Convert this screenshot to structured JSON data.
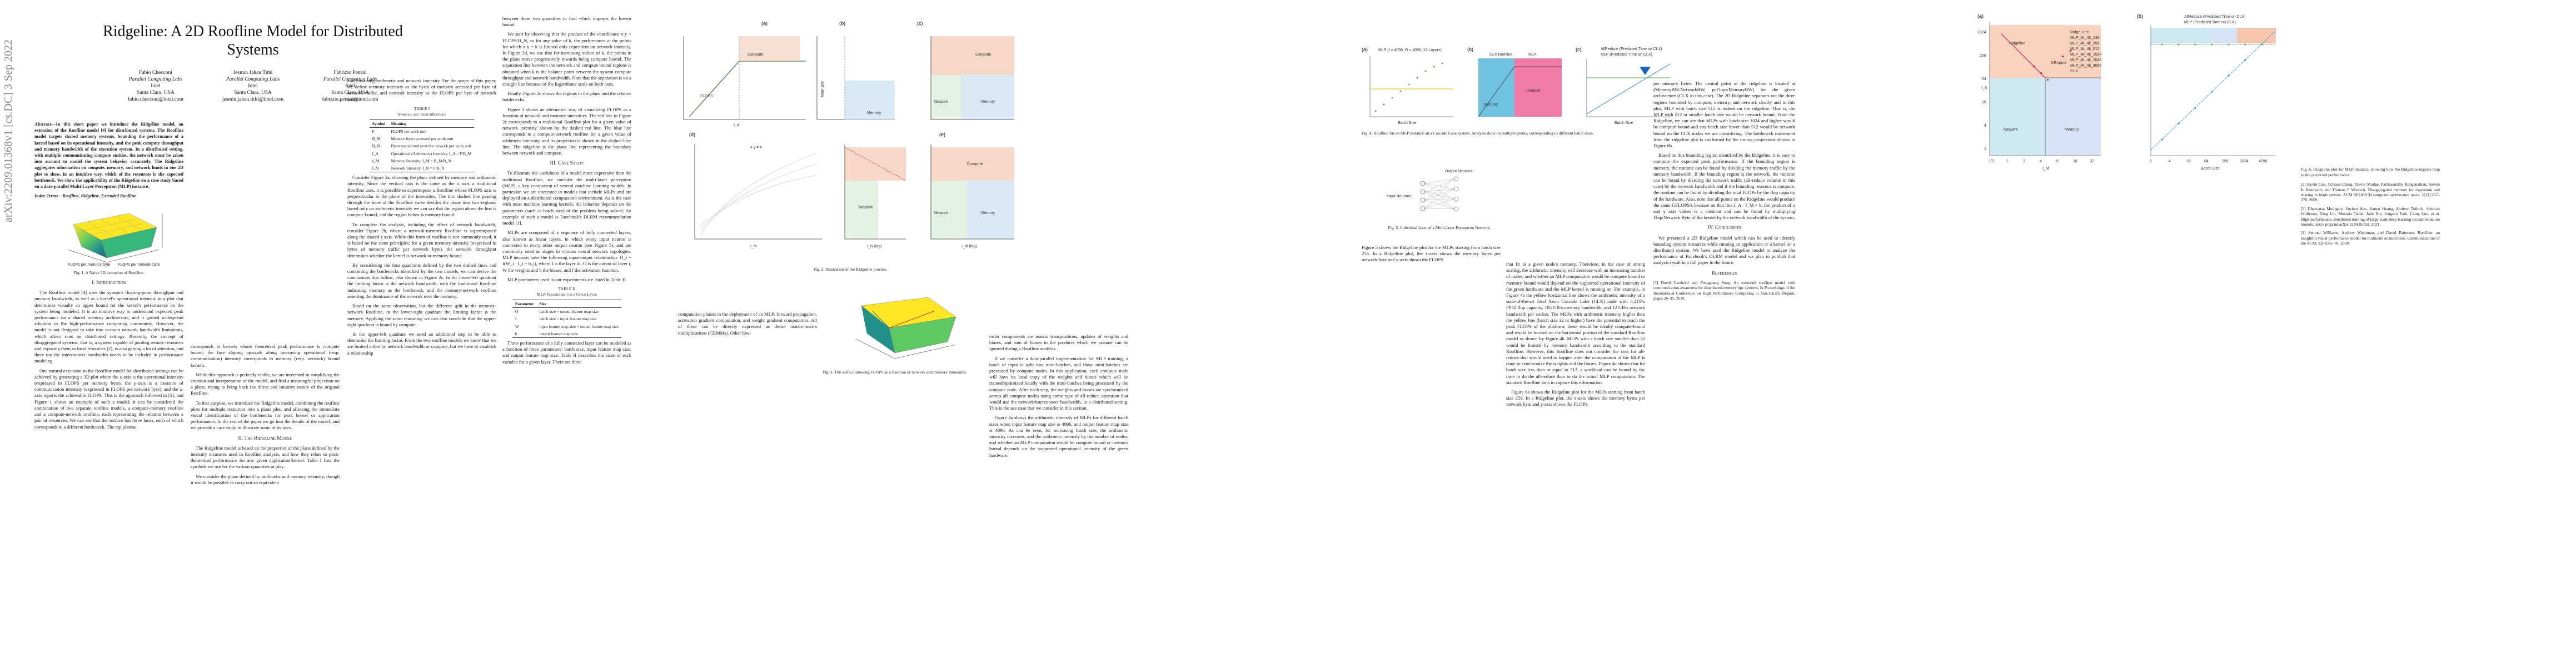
{
  "arxiv_id": "arXiv:2209.01368v1  [cs.DC]  3 Sep 2022",
  "title": "Ridgeline: A 2D Roofline Model for Distributed Systems",
  "authors": [
    {
      "name": "Fabio Checconi",
      "org": "Parallel Computing Labs",
      "company": "Intel",
      "city": "Santa Clara, USA",
      "email": "fabio.checconi@intel.com"
    },
    {
      "name": "Jesmin Jahan Tithi",
      "org": "Parallel Computing Labs",
      "company": "Intel",
      "city": "Santa Clara, USA",
      "email": "jesmin.jahan.tithi@intel.com"
    },
    {
      "name": "Fabrizio Petrini",
      "org": "Parallel Computing Labs",
      "company": "Intel",
      "city": "Santa Clara, USA",
      "email": "fabrizio.petrini@intel.com"
    }
  ],
  "abstract": "Abstract—In this short paper we introduce the Ridgeline model, an extension of the Roofline model [4] for distributed systems. The Roofline model targets shared memory systems, bounding the performance of a kernel based on its operational intensity, and the peak compute throughput and memory bandwidth of the execution system. In a distributed setting, with multiple communicating compute entities, the network must be taken into account to model the system behavior accurately. The Ridgeline aggregates information on compute, memory, and network limits in one 2D plot to show, in an intuitive way, which of the resources is the expected bottleneck. We show the applicability of the Ridgeline on a case study based on a data-parallel Multi-Layer Perceptron (MLP) instance.",
  "index_terms": "Index Terms—Roofline, Ridgeline, Extended Roofline",
  "fig1_caption": "Fig. 1. A Naive 3D extension of Roofline.",
  "fig1_axes": {
    "x": "FLOPs per memory byte",
    "y": "FLOPs per network byte"
  },
  "sections": {
    "intro": "I. Introduction",
    "ridgeline": "II. The Ridgeline Model",
    "case": "III. Case Study",
    "conclusion": "IV. Conclusion",
    "refs": "References"
  },
  "intro_paras": [
    "The Roofline model [4] uses the system's floating-point throughput and memory bandwidth, as well as a kernel's operational intensity in a plot that determines visually an upper bound for the kernel's performance on the system being modeled. It is an intuitive way to understand expected peak performance on a shared memory architecture, and it gained widespread adoption in the high-performance computing community. However, the model is not designed to take into account network bandwidth limitations, which affect runs on distributed settings. Recently, the concept of disaggregated systems, that is, a system capable of pooling remote resources and exposing them as local resources [2], is also getting a lot of attention, and there too the interconnect bandwidth needs to be included in performance modeling.",
    "One natural extension to the Roofline model for distributed settings can be achieved by generating a 3D plot where the x-axis is the operational intensity (expressed in FLOPS per memory byte), the y-axis is a measure of communication intensity (expressed in FLOPS per network byte), and the z-axis reports the achievable FLOPS. This is the approach followed in [3], and Figure 1 shows an example of such a model; it can be considered the combination of two separate roofline models, a compute-memory roofline and a compute-network roofline, each representing the relation between a pair of resources. We can see that the surface has three faces, each of which corresponds to a different bottleneck. The top plateau"
  ],
  "col2_paras": [
    "corresponds to kernels whose theoretical peak performance is compute bound; the face sloping upwards along increasing operational (resp. communication) intensity corresponds to memory (resp. network) bound kernels.",
    "While this approach is perfectly viable, we are interested in simplifying the creation and interpretation of the model, and find a meaningful projection on a plane, trying to bring back the direct and intuitive nature of the original Roofline.",
    "To that purpose, we introduce the Ridgeline model, combining the roofline plots for multiple resources into a plane plot, and allowing the immediate visual identification of the bottlenecks for peak kernel or application performance. In the rest of the paper we go into the details of the model, and we provide a case study to illustrate some of its uses.",
    "The Ridgeline model is based on the properties of the plane defined by the intensity measures used in Roofline analysis, and how they relate to peak-theoretical performance for any given application/kernel. Table I lists the symbols we use for the various quantities at play.",
    "We consider the plane defined by arithmetic and memory intensity, though it would be possible to carry out an equivalent"
  ],
  "col3_paras": [
    "analysis using arithmetic and network intensity. For the scope of this paper, we define memory intensity as the bytes of memory accessed per byte of network traffic, and network intensity as the FLOPS per byte of network traffic.",
    "Consider Figure 2a, showing the plane defined by memory and arithmetic intensity. Since the vertical axis is the same as the x axis a traditional Roofline uses, it is possible to superimpose a Roofline whose FLOPS axis is perpendicular to the plane of the intensities. The thin dashed line passing through the knee of the Roofline curve divides the plane into two regions: based only on arithmetic intensity we can say that the region above the line is compute bound, and the region below is memory bound.",
    "To complete the analysis, including the effect of network bandwidth, consider Figure 2b, where a network-memory Roofline is superimposed along the shared z axis. While this form of roofline is not commonly used, it is based on the same principles: for a given memory intensity (expressed in bytes of memory traffic per network byte), the network throughput determines whether the kernel is network or memory bound.",
    "By considering the four quadrants defined by the two dashed lines and combining the bottlenecks identified by the two models, we can derive the conclusions that follow, also shown in Figure 2c. In the lower-left quadrant the limiting factor is the network bandwidth, with the traditional Roofline indicating memory as the bottleneck, and the memory-network roofline asserting the dominance of the network over the memory.",
    "Based on the same observation, but the different split in the memory-network Roofline, in the lower-right quadrant the limiting factor is the memory. Applying the same reasoning we can also conclude that the upper-right quadrant is bound by compute.",
    "In the upper-left quadrant we need an additional step to be able to determine the limiting factor. From the two roofline models we know that we are limited either by network bandwidth or compute, but we have to establish a relationship"
  ],
  "table1_title": "TABLE I\nSymbols and Their Meanings",
  "table1_head": [
    "Symbol",
    "Meaning"
  ],
  "table1_rows": [
    [
      "F",
      "FLOPS per work unit"
    ],
    [
      "B_M",
      "Memory bytes accessed per work unit"
    ],
    [
      "B_N",
      "Bytes transferred over the network per work unit"
    ],
    [
      "I_A",
      "Operational (Arithmetic) Intensity, I_A = F/B_M"
    ],
    [
      "I_M",
      "Memory Intensity, I_M = B_M/B_N"
    ],
    [
      "I_N",
      "Network Intensity, I_N = F/B_N"
    ]
  ],
  "col4_paras": [
    "between these two quantities to find which imposes the lowest bound.",
    "We start by observing that the product of the coordinates x·y = FLOPS/B_N, so for any value of k, the performance at the points for which x·y = k is limited only dependent on network intensity. In Figure 2d, we use that for increasing values of k, the points in the plane move progressively towards being compute bound. The separation line between the network and compute bound regions is obtained when k is the balance point between the system compute throughput and network bandwidth. Note that the separation is on a straight line because of the logarithmic scale on both axes.",
    "Finally, Figure 2e shows the regions in the plane and the relative bottlenecks.",
    "Figure 3 shows an alternative way of visualizing FLOPS as a function of network and memory intensities. The red line in Figure 2c corresponds to a traditional Roofline plot for a given value of network intensity, shown by the dashed red line. The blue line corresponds to a compute-network roofline for a given value of arithmetic intensity, and its projection is shown in the dashed blue line. The ridgeline is the plane line representing the boundary between network and compute.",
    "To illustrate the usefulness of a model more expressive than the traditional Roofline, we consider the multi-layer perceptron (MLP), a key component of several machine learning models. In particular, we are interested in models that include MLPs and are deployed on a distributed computation environment. As is the case with most machine learning kernels, the behavior depends on the parameters (such as batch size) of the problem being solved. An example of such a model is Facebook's DLRM recommendation model [1].",
    "MLPs are composed of a sequence of fully connected layers, also known as linear layers, in which every input neuron is connected to every other output neuron (see Figure 5), and are commonly used as stages in various neural network topologies. MLP neurons have the following input-output relationship: O_i = f(W_i · I_i + b_i), where I is the layer id, O is the output of layer i, W the weights and b the biases, and f the activation function.",
    "MLP parameters used in our experiments are listed in Table II."
  ],
  "table2_title": "TABLE II\nMLP Parameters for a Given Layer",
  "table2_head": [
    "Parameter",
    "Size"
  ],
  "table2_rows": [
    [
      "O",
      "batch size × output feature map size"
    ],
    [
      "I",
      "batch size × input feature map size"
    ],
    [
      "W",
      "input feature map size × output feature map size"
    ],
    [
      "b",
      "output feature map size"
    ]
  ],
  "col4_tail": "Three performance of a fully connected layer can be modeled as a function of three parameters: batch size, input feature map size, and output feature map size. Table II describes the sizes of each variable for a given layer. There are three",
  "fig2_caption": "Fig. 2. Illustration of the Ridgeline process.",
  "fig2_labels": {
    "a": "(a)",
    "b": "(b)",
    "c": "(c)",
    "d": "(d)",
    "e": "(e)",
    "compute": "Compute",
    "memory": "Memory",
    "network": "Network",
    "flops": "FLOPS",
    "mem_bw": "Mem BW",
    "net_bw": "Net BW",
    "ia": "I_A",
    "im": "I_M",
    "in_log": "I_N (log)",
    "im_log": "I_M (log)",
    "ia_log": "I_A (log)",
    "xy": "x·y = k"
  },
  "fig3_caption": "Fig. 3. The surface showing FLOPS as a function of network and memory intensities.",
  "col5_paras": [
    "computation phases in the deployment of an MLP: forward propagation, activation gradient computation, and weight gradient computation. All of these can be directly expressed as dense matrix-matrix multiplications (GEMMs). Other low-",
    "order components are matrix transpositions, updates of weights and biases, and sum of biases to the products which we assume can be ignored during a Roofline analysis.",
    "If we consider a data-parallel implementation for MLP training, a batch of input is split into mini-batches, and those mini-batches are processed by compute nodes. In this application, each compute node will have its local copy of the weights and biases which will be trained/optimized locally with the mini-batches being processed by the compute node. After each step, the weights and biases are synchronized across all compute nodes using some type of all-reduce operation that would use the network/interconnect bandwidth, in a distributed setting. This is the use case that we consider in this section.",
    "Figure 4a shows the arithmetic intensity of MLPs for different batch sizes when input feature map size is 4096, and output feature map size is 4096. As can be seen, for increasing batch size, the arithmetic intensity increases, and the arithmetic intensity by the number of nodes, and whether an MLP computation would be compute bound or memory bound depends on the supported operational intensity of the green hardware.",
    "Figure 5 shows the Ridgeline plot for the MLPs starting from batch size 256. In a Ridgeline plot, the x-axis shows the memory bytes per network byte and y-axis shows the FLOPS"
  ],
  "fig4_caption": "Fig. 4. Roofline for an MLP instance on a Cascade Lake system. Analysis done on multiple points, corresponding to different batch sizes.",
  "fig4_labels": {
    "a": "(a)",
    "b": "(b)",
    "c": "(c)",
    "mlp_title": "MLP (f = 4096, O = 4096, 10 Layers)",
    "batch_size": "Batch Size",
    "compute": "compute",
    "memory": "Memory",
    "clx": "CLX Roofline",
    "mlp": "MLP",
    "legend1": "AllReduce (Predicted Time on CLX)",
    "legend2": "MLP (Predicted Time on CLX)"
  },
  "fig5_caption": "Fig. 5. Individual layer of a Multi-layer Perceptron Network.",
  "fig5_labels": {
    "input": "Input Neurons",
    "output": "Output Neurons"
  },
  "col6_paras": [
    "that fit in a given node's memory. Therefore, in the case of strong scaling, the arithmetic intensity will decrease with an increasing number of nodes, and whether an MLP computation would be compute bound or memory bound would depend on the supported operational intensity of the green hardware and the MLP kernel is running on. For example, in Figure 4a the yellow horizontal line shows the arithmetic intensity of a state-of-the-art Intel Xeon Cascade Lake (CLX) node with 4.2TF/s FP32 flop capacity, 105 GB/s memory bandwidth, and 12 GB/s network bandwidth per socket. The MLPs with arithmetic intensity higher than the yellow line (batch size 32 or higher) have the potential to reach the peak FLOPS of the platform; these would be ideally compute-bound and would be located on the horizontal portion of the standard Roofline model as shown by Figure 4b. MLPs with a batch size smaller than 32 would be limited by memory bandwidth according to the standard Roofline. However, this Roofline does not consider the cost for all-reduce that would need to happen after the computation of the MLP is done to synchronize the weights and the biases. Figure 4c shows that for batch size less than or equal to 512, a workload can be bound by the time to do the all-reduce than to do the actual MLP computation. The standard Roofline fails to capture this information.",
    "Figure 6a shows the Ridgeline plot for the MLPs starting from batch size 256. In a Ridgeline plot, the x-axis shows the memory bytes per network byte and y-axis shows the FLOPS"
  ],
  "col7_paras": [
    "per memory bytes. The central point of the ridgeline is located at (MemoryBW/NetworkBW, peFlops/MemoryBW) for the given architecture (CLX in this case). The 2D Ridgeline separates out the three regions bounded by compute, memory, and network clearly and in this plot, MLP with batch size 512 is indeed on the ridgeline. That is, the MLP with 512 or smaller batch size would be network bound. From the Ridgeline, we can see that MLPs with batch size 1024 and higher would be compute-bound and any batch size lower than 512 would be network bound on the CLX nodes we are considering. The bottleneck movement from the ridgeline plot is confirmed by the timing projections shown in Figure 6b.",
    "Based on this bounding region identified by the Ridgeline, it is easy to compute the expected peak performance. If the bounding region is memory, the runtime can be found by dividing the memory traffic by the memory bandwidth. If the bounding region is the network, the runtime can be found by dividing the network traffic (all-reduce volume in this case) by the network bandwidth and if the bounding resource is compute, the runtime can be found by dividing the total FLOPs by the flop capacity of the hardware. Also, note that all points on the Ridgeline would produce the same GFLOPS/s because on that line I_A · I_M = k: the product of x and y axis values is a constant and can be found by multiplying Flop/Network Byte of the kernel by the network bandwidth of the system.",
    "We presented a 2D Ridgeline model which can be used to identify bounding system resources while running an application or a kernel on a distributed system. We have used the Ridgeline model to analyze the performance of Facebook's DLRM model and we plan to publish that analysis result in a full paper in the future."
  ],
  "refs_left": [
    "[1] David Cardwell and Fengguang Song. An extended roofline model with communication-awareness for distributed-memory hpc systems. In Proceedings of the International Conference on High Performance Computing in Asia-Pacific Region, pages 26–35, 2019."
  ],
  "refs_right": [
    "[2] Kevin Lim, Jichuan Chang, Trevor Mudge, Parthasarathy Ranganathan, Steven K Reinhardt, and Thomas F Wenisch. Disaggregated memory for expansion and sharing in blade servers. ACM SIGARCH computer architecture news, 37(3):267–278, 2009.",
    "[3] Dheevatsa Mudigere, Yuchen Hao, Jianyu Huang, Andrew Tulloch, Srinivas Sridharan, Xing Liu, Mustafa Ozdal, Jade Nie, Jongsoo Park, Liang Luo, et al. High-performance, distributed training of large-scale deep learning recommendation models. arXiv preprint arXiv:2104.05158, 2021.",
    "[4] Samuel Williams, Andrew Waterman, and David Patterson. Roofline: an insightful visual performance model for multicore architectures. Communications of the ACM, 52(4):65–76, 2009."
  ],
  "fig6_caption": "Fig. 6. Ridgeline plot for MLP instance, showing how the Ridgeline regions map to the projected performance.",
  "fig6_labels": {
    "a": "(a)",
    "b": "(b)",
    "ridgeline": "Ridgeline",
    "ridge_line": "Ridge Line",
    "compute": "Compute",
    "memory": "Memory",
    "network": "Network",
    "ia": "I_A",
    "im": "I_M",
    "batch_size": "Batch Size",
    "legend_a": [
      "Ridge Line",
      "MLP_4k_4k_128",
      "MLP_4k_4k_256",
      "MLP_4k_4k_512",
      "MLP_4k_4k_1024",
      "MLP_4k_4k_2048",
      "MLP_4k_4k_4096",
      "CLX"
    ],
    "legend_b": [
      "AllReduce (Predicted Time on CLX)",
      "MLP (Predicted Time on CLX)"
    ],
    "xticks_a": [
      "1/2",
      "1",
      "2",
      "4",
      "8",
      "16",
      "32"
    ],
    "yticks_a": [
      "1024",
      "256",
      "64",
      "16",
      "4",
      "1"
    ],
    "xticks_b": [
      "1",
      "4",
      "16",
      "64",
      "256",
      "1024",
      "4096"
    ]
  }
}
